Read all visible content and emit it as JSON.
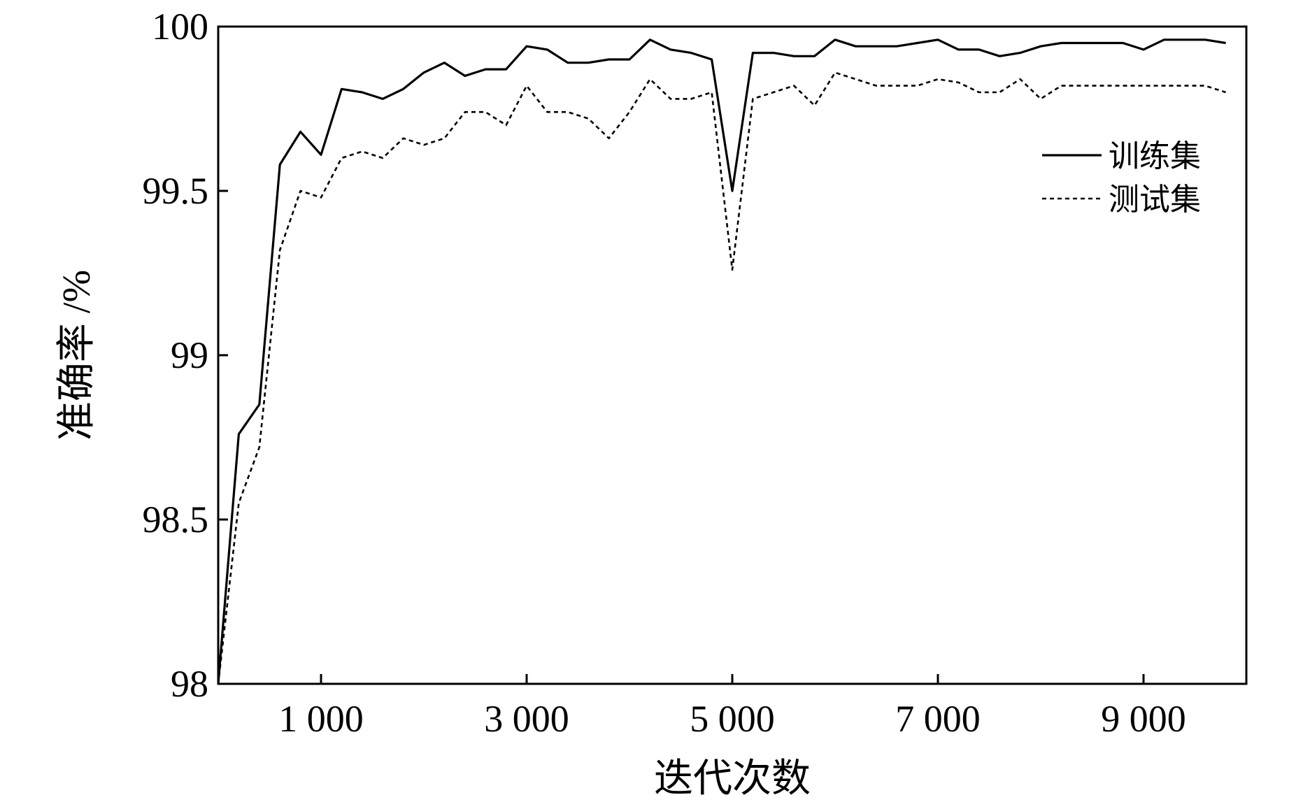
{
  "chart_data": {
    "type": "line",
    "title": "",
    "xlabel": "迭代次数",
    "ylabel": "准确率 /%",
    "xlim": [
      0,
      10000
    ],
    "ylim": [
      98,
      100
    ],
    "xticks": [
      1000,
      3000,
      5000,
      7000,
      9000
    ],
    "xtick_labels": [
      "1 000",
      "3 000",
      "5 000",
      "7 000",
      "9 000"
    ],
    "yticks": [
      98,
      98.5,
      99,
      99.5,
      100
    ],
    "ytick_labels": [
      "98",
      "98.5",
      "99",
      "99.5",
      "100"
    ],
    "grid": false,
    "legend_position": "right",
    "series": [
      {
        "name": "训练集",
        "style": "solid",
        "color": "#000000",
        "x": [
          0,
          200,
          400,
          600,
          800,
          1000,
          1200,
          1400,
          1600,
          1800,
          2000,
          2200,
          2400,
          2600,
          2800,
          3000,
          3200,
          3400,
          3600,
          3800,
          4000,
          4200,
          4400,
          4600,
          4800,
          5000,
          5200,
          5400,
          5600,
          5800,
          6000,
          6200,
          6400,
          6600,
          6800,
          7000,
          7200,
          7400,
          7600,
          7800,
          8000,
          8200,
          8400,
          8600,
          8800,
          9000,
          9200,
          9400,
          9600,
          9800
        ],
        "y": [
          98.0,
          98.76,
          98.85,
          99.58,
          99.68,
          99.61,
          99.81,
          99.8,
          99.78,
          99.81,
          99.86,
          99.89,
          99.85,
          99.87,
          99.87,
          99.94,
          99.93,
          99.89,
          99.89,
          99.9,
          99.9,
          99.96,
          99.93,
          99.92,
          99.9,
          99.5,
          99.92,
          99.92,
          99.91,
          99.91,
          99.96,
          99.94,
          99.94,
          99.94,
          99.95,
          99.96,
          99.93,
          99.93,
          99.91,
          99.92,
          99.94,
          99.95,
          99.95,
          99.95,
          99.95,
          99.93,
          99.96,
          99.96,
          99.96,
          99.95
        ]
      },
      {
        "name": "测试集",
        "style": "dotted",
        "color": "#000000",
        "x": [
          0,
          200,
          400,
          600,
          800,
          1000,
          1200,
          1400,
          1600,
          1800,
          2000,
          2200,
          2400,
          2600,
          2800,
          3000,
          3200,
          3400,
          3600,
          3800,
          4000,
          4200,
          4400,
          4600,
          4800,
          5000,
          5200,
          5400,
          5600,
          5800,
          6000,
          6200,
          6400,
          6600,
          6800,
          7000,
          7200,
          7400,
          7600,
          7800,
          8000,
          8200,
          8400,
          8600,
          8800,
          9000,
          9200,
          9400,
          9600,
          9800
        ],
        "y": [
          98.0,
          98.55,
          98.72,
          99.32,
          99.5,
          99.48,
          99.6,
          99.62,
          99.6,
          99.66,
          99.64,
          99.66,
          99.74,
          99.74,
          99.7,
          99.82,
          99.74,
          99.74,
          99.72,
          99.66,
          99.74,
          99.84,
          99.78,
          99.78,
          99.8,
          99.26,
          99.78,
          99.8,
          99.82,
          99.76,
          99.86,
          99.84,
          99.82,
          99.82,
          99.82,
          99.84,
          99.83,
          99.8,
          99.8,
          99.84,
          99.78,
          99.82,
          99.82,
          99.82,
          99.82,
          99.82,
          99.82,
          99.82,
          99.82,
          99.8
        ]
      }
    ]
  }
}
